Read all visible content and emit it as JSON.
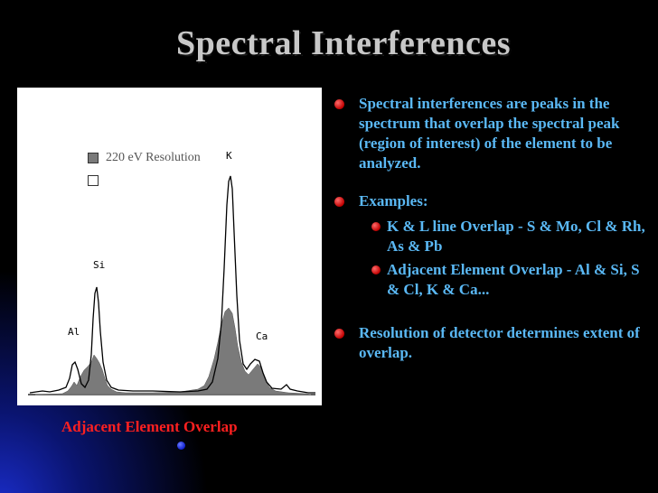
{
  "slide": {
    "title": "Spectral Interferences",
    "caption": "Adjacent Element Overlap"
  },
  "chart": {
    "legend": [
      "220 eV Resolution",
      ""
    ],
    "peaks": [
      "K",
      "Si",
      "Al",
      "Ca"
    ],
    "fill_color": "#7a7a7a",
    "line_color": "#000000"
  },
  "bullets": [
    {
      "text": "Spectral interferences are peaks in the spectrum that overlap the spectral peak (region of interest) of the element to be analyzed."
    },
    {
      "text": "Examples:",
      "sub": [
        "K & L line Overlap - S & Mo, Cl & Rh, As & Pb",
        "Adjacent Element Overlap - Al & Si, S & Cl, K & Ca..."
      ]
    },
    {
      "text": "Resolution of detector determines extent of overlap."
    }
  ],
  "colors": {
    "bullet_text": "#5ab8f4",
    "bullet_dot": "#c00000",
    "caption": "#ff2020",
    "title": "#c8c8c8"
  }
}
